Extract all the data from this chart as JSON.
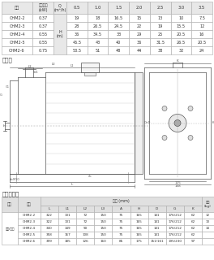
{
  "bg_color": "#ffffff",
  "header_bg": "#e8e8e8",
  "cell_bg": "#ffffff",
  "border_color": "#aaaaaa",
  "text_color": "#333333",
  "dim_color": "#555555",
  "line_color": "#555555",
  "section_title1": "安装图",
  "section_title2": "尺寸和重量",
  "table1": {
    "col0_header": "型号",
    "col1_header": "配同电机\n(kW)",
    "col2_header": "Q\n(m³/h)",
    "col2_subheader": "H\n(m)",
    "flow_headers": [
      "0.5",
      "1.0",
      "1.5",
      "2.0",
      "2.5",
      "3.0",
      "3.5"
    ],
    "rows": [
      [
        "CHM2-2",
        "0.37",
        "19",
        "18",
        "16.5",
        "15",
        "13",
        "10",
        "7.5"
      ],
      [
        "CHM2-3",
        "0.37",
        "28",
        "26.5",
        "24.5",
        "22",
        "19",
        "15.5",
        "12"
      ],
      [
        "CHM2-4",
        "0.55",
        "36",
        "34.5",
        "33",
        "29",
        "25",
        "20.5",
        "16"
      ],
      [
        "CHM2-5",
        "0.55",
        "45.5",
        "43",
        "40",
        "36",
        "31.5",
        "26.5",
        "20.5"
      ],
      [
        "CHM2-6",
        "0.75",
        "53.5",
        "51",
        "48",
        "44",
        "38",
        "32",
        "24"
      ]
    ]
  },
  "table2": {
    "dim_header": "尺寸 (mm)",
    "motor_type": "三相/单相",
    "dim_cols": [
      "L",
      "L1",
      "L2",
      "L3",
      "A",
      "H",
      "D",
      "G",
      "K"
    ],
    "weight_header": "重量\n(kg)",
    "rows": [
      [
        "CHM2-2",
        "322",
        "131",
        "72",
        "150",
        "75",
        "165",
        "141",
        "176/212",
        "62",
        "12"
      ],
      [
        "CHM2-3",
        "322",
        "131",
        "72",
        "150",
        "75",
        "165",
        "141",
        "176/212",
        "62",
        "13"
      ],
      [
        "CHM2-4",
        "340",
        "149",
        "90",
        "150",
        "75",
        "165",
        "141",
        "176/212",
        "62",
        "14"
      ],
      [
        "CHM2-5",
        "358",
        "167",
        "108",
        "150",
        "75",
        "165",
        "141",
        "176/212",
        "62",
        ""
      ],
      [
        "CHM2-6",
        "399",
        "185",
        "126",
        "160",
        "85",
        "175",
        "151/161",
        "195/230",
        "97",
        ""
      ]
    ]
  },
  "diag_labels": {
    "L2": "L2",
    "Sd1": "Sd1",
    "L3": "L3",
    "L1": "L1",
    "L": "L",
    "H": "H",
    "G1": "G1",
    "G": "G",
    "D+D": "D+D",
    "A": "A",
    "nb": "nb",
    "d=M10": "d=M10",
    "K": "K",
    "125": "125",
    "158": "158"
  }
}
